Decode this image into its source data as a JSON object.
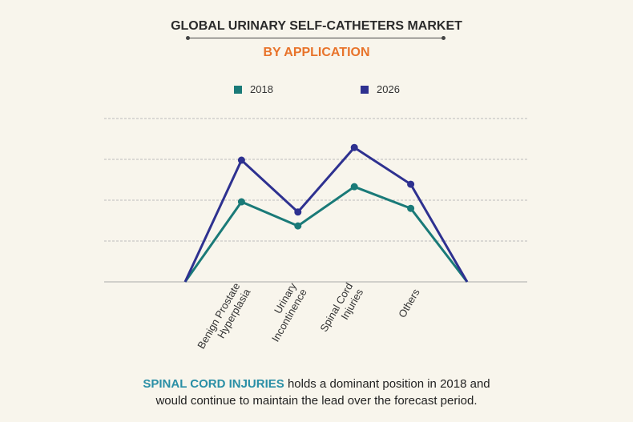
{
  "chart_data": {
    "type": "line",
    "title": "GLOBAL URINARY SELF-CATHETERS MARKET",
    "subtitle": "BY APPLICATION",
    "categories": [
      "",
      "Benign Prostate Hyperplasia",
      "Urinary Incontinence",
      "Spinal Cord Injuries",
      "Others",
      ""
    ],
    "category_lines": [
      [],
      [
        "Benign Prostate",
        "Hyperplasia"
      ],
      [
        "Urinary",
        "Incontinence"
      ],
      [
        "Spinal Cord",
        "Injuries"
      ],
      [
        "Others"
      ],
      []
    ],
    "series": [
      {
        "name": "2018",
        "color": "#1a7a78",
        "values": [
          0,
          1.96,
          1.37,
          2.33,
          1.8,
          0
        ]
      },
      {
        "name": "2026",
        "color": "#2e3190",
        "values": [
          0,
          2.98,
          1.71,
          3.29,
          2.39,
          0
        ]
      }
    ],
    "ylim": [
      0,
      4
    ],
    "grid": true,
    "legend": "top-center",
    "xlabel": "",
    "ylabel": ""
  },
  "footer": {
    "highlight": "SPINAL CORD INJURIES",
    "text1": " holds a dominant position in 2018 and",
    "text2": "would continue to maintain the lead over the forecast period."
  }
}
